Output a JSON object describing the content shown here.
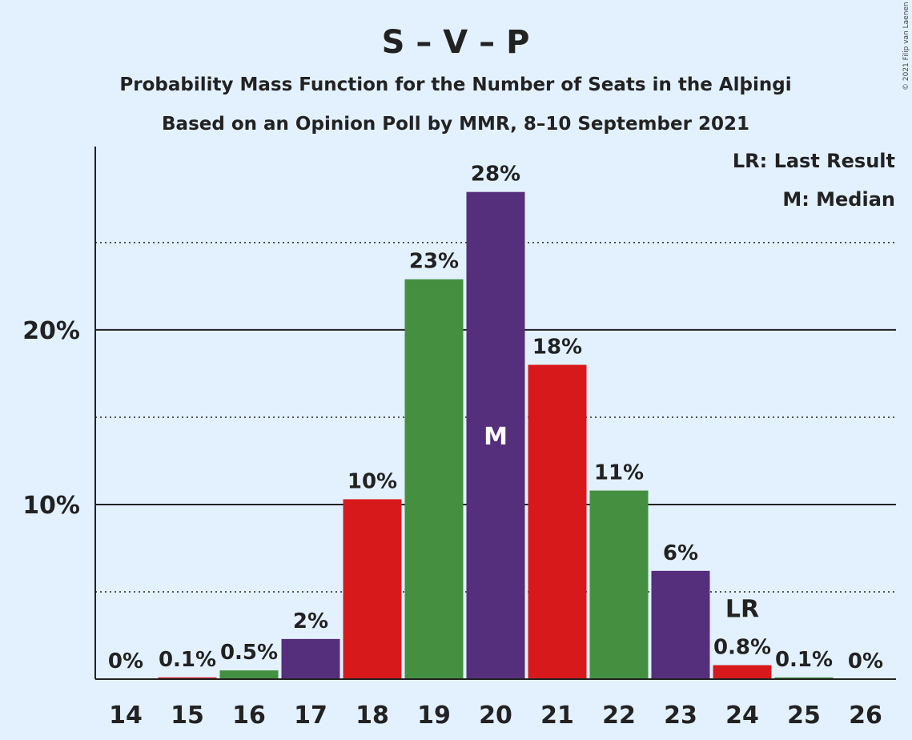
{
  "chart_data": {
    "type": "bar",
    "title": "S – V – P",
    "subtitle": "Probability Mass Function for the Number of Seats in the Alþingi",
    "subtitle2": "Based on an Opinion Poll by MMR, 8–10 September 2021",
    "copyright": "© 2021 Filip van Laenen",
    "legend": {
      "lr": "LR: Last Result",
      "median": "M: Median",
      "placement": "top-right"
    },
    "categories": [
      "14",
      "15",
      "16",
      "17",
      "18",
      "19",
      "20",
      "21",
      "22",
      "23",
      "24",
      "25",
      "26"
    ],
    "values": [
      0,
      0.1,
      0.5,
      2.3,
      10.3,
      22.9,
      27.9,
      18.0,
      10.8,
      6.2,
      0.8,
      0.1,
      0
    ],
    "data_labels": [
      "0%",
      "0.1%",
      "0.5%",
      "2%",
      "10%",
      "23%",
      "28%",
      "18%",
      "11%",
      "6%",
      "0.8%",
      "0.1%",
      "0%"
    ],
    "colors": [
      "#552e7c",
      "#d7191c",
      "#449040",
      "#552e7c",
      "#d7191c",
      "#449040",
      "#552e7c",
      "#d7191c",
      "#449040",
      "#552e7c",
      "#d7191c",
      "#449040",
      "#552e7c"
    ],
    "yticks": [
      {
        "value": 10,
        "label": "10%"
      },
      {
        "value": 20,
        "label": "20%"
      }
    ],
    "dotted_gridlines": [
      5,
      15,
      25
    ],
    "ylim": [
      0,
      30.5
    ],
    "median": {
      "category": "20",
      "label": "M"
    },
    "last_result": {
      "category": "24",
      "label": "LR"
    }
  }
}
